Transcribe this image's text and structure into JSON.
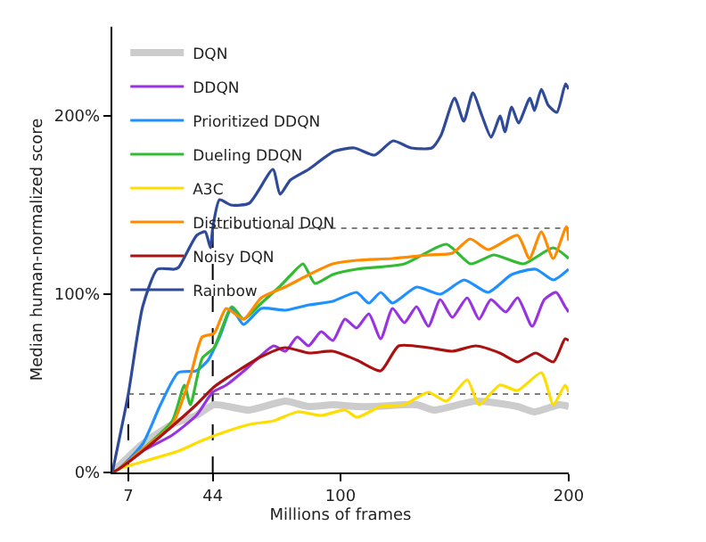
{
  "chart_data": {
    "type": "line",
    "xlabel": "Millions of frames",
    "ylabel": "Median human-normalized score",
    "xlim": [
      0,
      200
    ],
    "xticks": [
      7,
      44,
      100,
      200
    ],
    "ylim": [
      0,
      250
    ],
    "yticks": [
      {
        "value": 0,
        "label": "0%"
      },
      {
        "value": 100,
        "label": "100%"
      },
      {
        "value": 200,
        "label": "200%"
      }
    ],
    "legend": "top left",
    "series": [
      {
        "name": "DQN",
        "color": "#cccccc",
        "x": [
          0,
          13.3,
          26.3,
          36.8,
          44.6,
          60,
          75.9,
          86,
          96.7,
          107,
          115,
          133.3,
          141,
          159.3,
          177.5,
          185,
          196,
          200
        ],
        "values": [
          0,
          16,
          27,
          32,
          38,
          35,
          40,
          37,
          38,
          37,
          37,
          38,
          35,
          40,
          37,
          34,
          38,
          37
        ]
      },
      {
        "name": "DDQN",
        "color": "#9933e0",
        "x": [
          0,
          2.9,
          13.3,
          26.3,
          36.8,
          44,
          49.9,
          57.7,
          62.9,
          70.7,
          75.9,
          81,
          86,
          91.5,
          96.7,
          101.9,
          107,
          112.4,
          117.6,
          122.8,
          128,
          133.3,
          138.5,
          143.7,
          149,
          155.5,
          160.7,
          165.9,
          172.4,
          177.6,
          184,
          189.3,
          194.5,
          198.4,
          200
        ],
        "values": [
          0,
          2,
          12,
          21,
          32,
          45,
          49,
          57,
          63,
          71,
          68,
          76,
          71,
          79,
          74,
          86,
          81,
          89,
          75,
          92,
          84,
          93,
          82,
          97,
          87,
          98,
          86,
          97,
          90,
          98,
          82,
          97,
          101,
          93,
          90
        ]
      },
      {
        "name": "Prioritized DDQN",
        "color": "#1e90ff",
        "x": [
          0,
          2.9,
          13.3,
          21.1,
          28.9,
          36.8,
          42,
          47,
          52.3,
          57.5,
          65.3,
          75.7,
          86.2,
          96.6,
          107,
          112.4,
          117.6,
          122.8,
          133.3,
          143.7,
          154.2,
          164.6,
          175,
          185.5,
          193.3,
          200
        ],
        "values": [
          0,
          2,
          16,
          38,
          56,
          57,
          63,
          76,
          92,
          83,
          92,
          91,
          94,
          96,
          101,
          95,
          101,
          95,
          104,
          100,
          108,
          101,
          111,
          114,
          108,
          114
        ]
      },
      {
        "name": "Dueling DDQN",
        "color": "#33bb33",
        "x": [
          0,
          2.9,
          13.3,
          26.3,
          31.6,
          34.2,
          39.4,
          44.6,
          52.4,
          57.5,
          65.3,
          73.1,
          78.4,
          83.6,
          88.8,
          96.6,
          107,
          128,
          146.4,
          157,
          167.2,
          180.2,
          193.2,
          200
        ],
        "values": [
          0,
          2,
          13,
          29,
          49,
          38,
          64,
          70,
          93,
          86,
          95,
          104,
          111,
          117,
          106,
          111,
          114,
          117,
          128,
          117,
          122,
          117,
          126,
          120
        ]
      },
      {
        "name": "A3C",
        "color": "#ffdd00",
        "x": [
          0,
          2.9,
          15.9,
          28.9,
          39.4,
          49.9,
          60.3,
          70.7,
          81.2,
          91.5,
          102,
          107.2,
          117.6,
          128,
          138.5,
          146.4,
          155.5,
          160.7,
          169.8,
          177.6,
          188,
          193.3,
          198.4,
          200
        ],
        "values": [
          0,
          2,
          7,
          12,
          18,
          23,
          27,
          29,
          34,
          32,
          35,
          31,
          37,
          38,
          45,
          40,
          52,
          38,
          49,
          46,
          56,
          38,
          49,
          45
        ]
      },
      {
        "name": "Distributional DQN",
        "color": "#ff8c00",
        "x": [
          0,
          2.9,
          13.3,
          26.3,
          34.2,
          39.4,
          44.6,
          49.9,
          57.5,
          65.3,
          75.7,
          86.2,
          96.6,
          107.2,
          122.8,
          138.5,
          149,
          156.8,
          164.6,
          177.6,
          182.8,
          188,
          193.2,
          199,
          200
        ],
        "values": [
          0,
          2,
          13,
          27,
          54,
          76,
          78,
          92,
          86,
          98,
          104,
          111,
          117,
          119,
          120,
          122,
          123,
          131,
          125,
          133,
          120,
          135,
          120,
          138,
          130
        ]
      },
      {
        "name": "Noisy DQN",
        "color": "#aa1111",
        "x": [
          0,
          2.9,
          13.3,
          26.3,
          36.8,
          44.6,
          55,
          65.3,
          75.7,
          86.2,
          96.6,
          107.2,
          117.6,
          125.5,
          138.5,
          149,
          159.3,
          169.8,
          177.6,
          185.5,
          193.3,
          198.4,
          200
        ],
        "values": [
          0,
          2,
          12,
          26,
          38,
          48,
          57,
          65,
          70,
          67,
          68,
          63,
          57,
          71,
          70,
          68,
          71,
          67,
          62,
          67,
          62,
          75,
          74
        ]
      },
      {
        "name": "Rainbow",
        "color": "#2e4a99",
        "x": [
          0,
          7,
          13.3,
          19.8,
          27,
          29,
          37,
          40.7,
          43,
          44,
          47,
          52,
          60,
          70.4,
          73.5,
          78,
          86,
          97,
          106,
          115,
          123,
          131,
          140,
          144,
          150,
          154,
          158,
          162,
          166,
          170,
          172,
          175,
          178,
          183,
          185,
          188,
          191,
          194.8,
          198.6,
          200
        ],
        "values": [
          0,
          44,
          93,
          114,
          114,
          115,
          133,
          135,
          126,
          137,
          153,
          150,
          151,
          170,
          156,
          164,
          170,
          180,
          182,
          178,
          186,
          182,
          182,
          189,
          210,
          197,
          213,
          200,
          188,
          200,
          191,
          205,
          196,
          210,
          203,
          215,
          206,
          202,
          218,
          215
        ]
      }
    ],
    "ref_lines": [
      {
        "axis": "x",
        "value": 7,
        "color": "#000000",
        "line_style": "dashed"
      },
      {
        "axis": "x",
        "value": 44,
        "color": "#000000",
        "line_style": "dashed"
      },
      {
        "axis": "y",
        "value": 44,
        "color": "#555555",
        "line_style": "dotted"
      },
      {
        "axis": "y",
        "value": 137,
        "color": "#555555",
        "line_style": "dotted"
      }
    ]
  }
}
